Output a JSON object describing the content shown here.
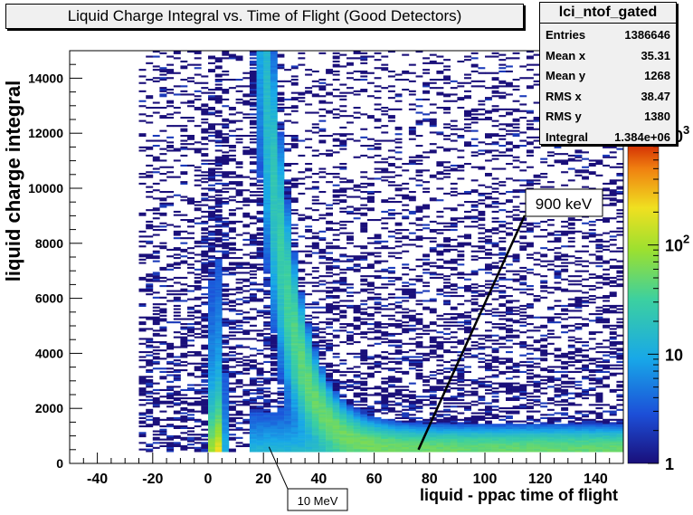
{
  "chart_data": {
    "type": "heatmap",
    "title": "Liquid Charge Integral vs. Time of Flight (Good Detectors)",
    "xlabel": "liquid - ppac time of flight",
    "ylabel": "liquid charge integral",
    "xlim": [
      -50,
      150
    ],
    "ylim": [
      0,
      15000
    ],
    "x_ticks": [
      -40,
      -20,
      0,
      20,
      40,
      60,
      80,
      100,
      120,
      140
    ],
    "y_ticks": [
      0,
      2000,
      4000,
      6000,
      8000,
      10000,
      12000,
      14000
    ],
    "z_scale": "log",
    "z_ticks": [
      {
        "label": "1",
        "exp": "",
        "value": 1
      },
      {
        "label": "10",
        "exp": "",
        "value": 10
      },
      {
        "label": "10",
        "exp": "2",
        "value": 100
      },
      {
        "label": "10",
        "exp": "3",
        "value": 1000
      }
    ],
    "gamma_peak_x": 3,
    "neutron_band": "ridge from x≈20 falling toward x≈80 at low charge",
    "annotations": [
      {
        "text": "900 keV",
        "point": [
          76,
          500
        ]
      },
      {
        "text": "10 MeV",
        "point": [
          22,
          600
        ]
      }
    ]
  },
  "stats": {
    "name": "lci_ntof_gated",
    "rows": [
      {
        "label": "Entries",
        "value": "1386646"
      },
      {
        "label": "Mean x",
        "value": "35.31"
      },
      {
        "label": "Mean y",
        "value": "1268"
      },
      {
        "label": "RMS x",
        "value": "38.47"
      },
      {
        "label": "RMS y",
        "value": "1380"
      },
      {
        "label": "Integral",
        "value": "1.384e+06"
      }
    ]
  }
}
